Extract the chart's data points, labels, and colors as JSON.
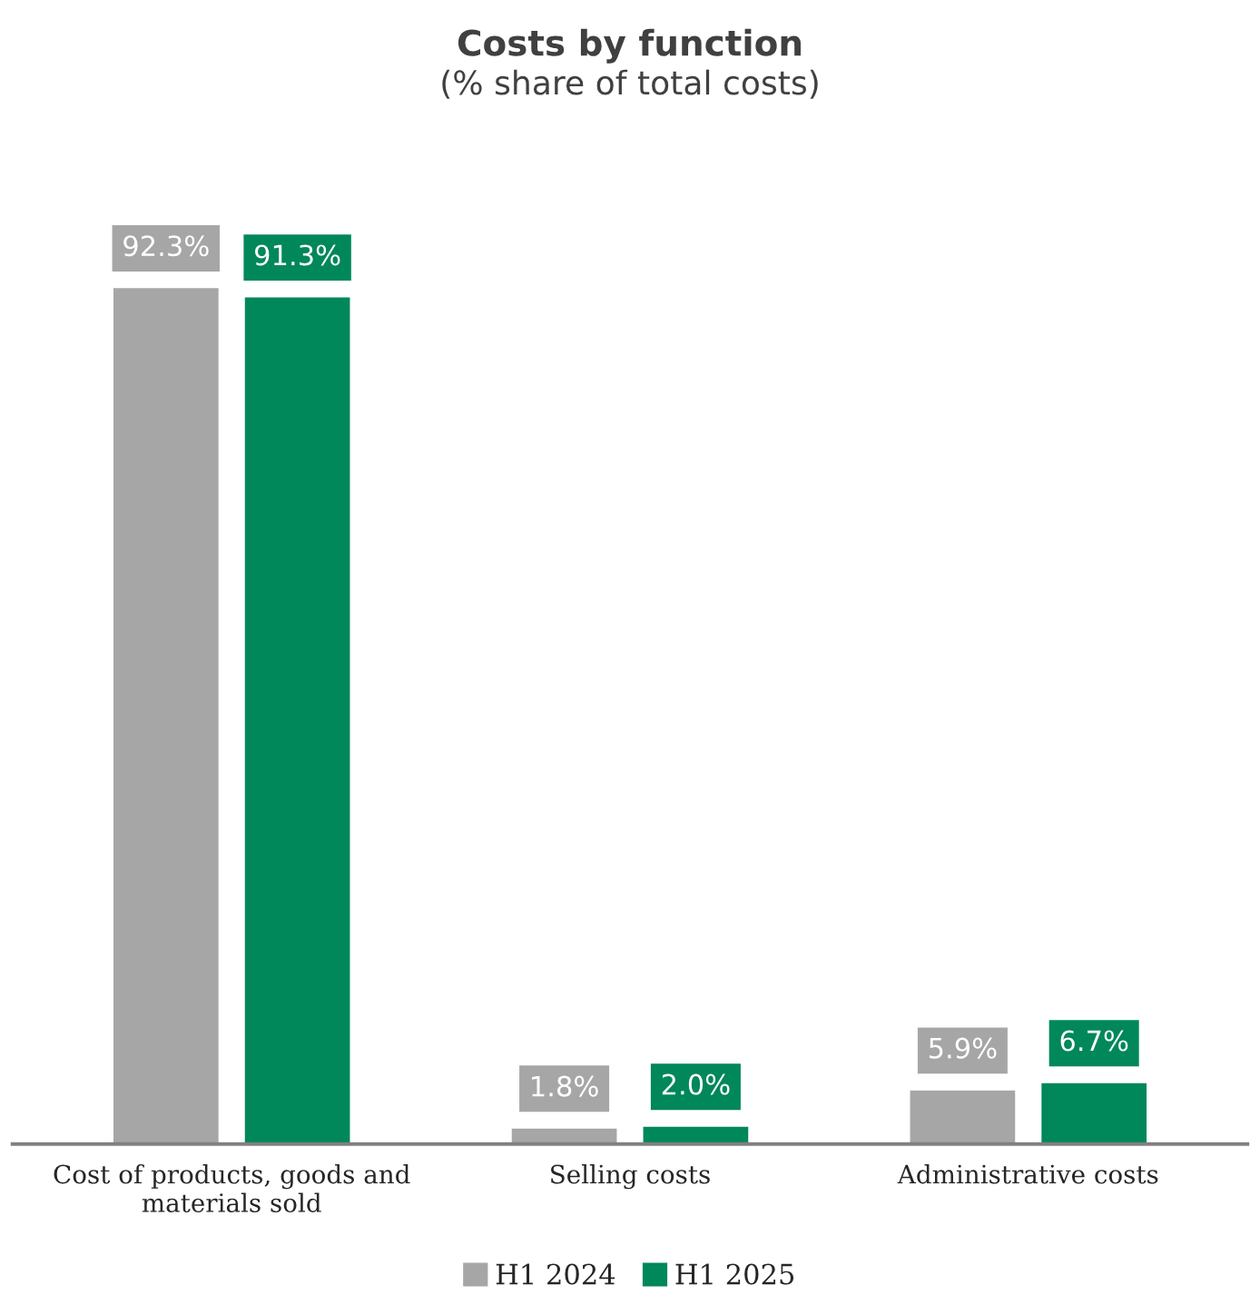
{
  "chart_data": {
    "type": "bar",
    "title": "Costs by function",
    "subtitle": "(% share of total costs)",
    "categories": [
      "Cost of products, goods and\nmaterials sold",
      "Selling costs",
      "Administrative costs"
    ],
    "series": [
      {
        "name": "H1 2024",
        "color": "#a6a6a6",
        "values": [
          92.3,
          1.8,
          5.9
        ],
        "value_labels": [
          "92.3%",
          "1.8%",
          "5.9%"
        ]
      },
      {
        "name": "H1 2025",
        "color": "#00875a",
        "values": [
          91.3,
          2.0,
          6.7
        ],
        "value_labels": [
          "91.3%",
          "2.0%",
          "6.7%"
        ]
      }
    ],
    "legend": "bottom",
    "grid": false
  }
}
